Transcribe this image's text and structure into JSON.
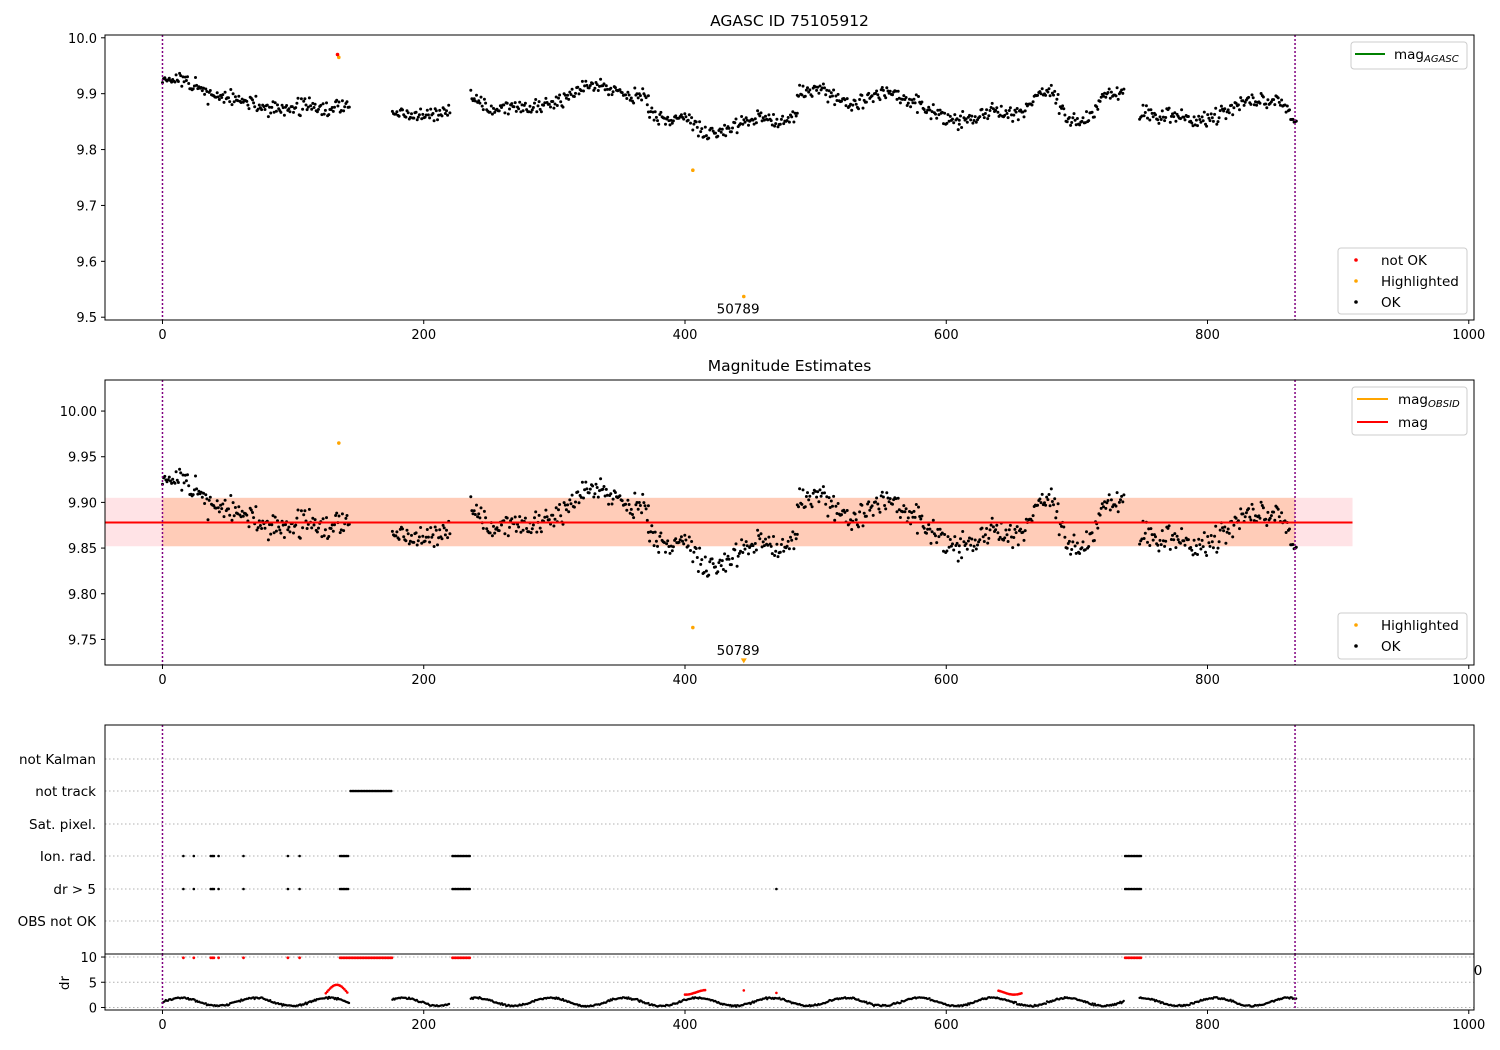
{
  "chart_data": [
    {
      "type": "scatter",
      "title": "AGASC ID 75105912",
      "xlim": [
        -44,
        1004
      ],
      "ylim": [
        9.495,
        10.005
      ],
      "xticks": [
        0,
        200,
        400,
        600,
        800,
        1000
      ],
      "yticks": [
        9.5,
        9.6,
        9.7,
        9.8,
        9.9,
        10.0
      ],
      "ytick_labels": [
        "9.5",
        "9.6",
        "9.7",
        "9.8",
        "9.9",
        "10.0"
      ],
      "vlines": [
        0,
        867
      ],
      "legend_lines": [
        {
          "label": "mag",
          "sub": "AGASC",
          "color": "#008000"
        }
      ],
      "legend_points": [
        {
          "label": "not OK",
          "color": "#ff0000"
        },
        {
          "label": "Highlighted",
          "color": "#ffa500"
        },
        {
          "label": "OK",
          "color": "#000000"
        }
      ],
      "annotation": {
        "text": "50789",
        "x": 433,
        "y": 9.51
      },
      "highlighted": [
        [
          135,
          9.965
        ],
        [
          406,
          9.763
        ],
        [
          445,
          9.537
        ]
      ],
      "not_ok": [
        [
          134,
          9.97
        ]
      ],
      "segments": [
        {
          "x0": 0,
          "x1": 143,
          "y": [
            9.93,
            9.92,
            9.9,
            9.89,
            9.88,
            9.87,
            9.88,
            9.87,
            9.88
          ]
        },
        {
          "x0": 176,
          "x1": 220,
          "y": [
            9.87,
            9.86,
            9.86,
            9.86,
            9.87
          ]
        },
        {
          "x0": 236,
          "x1": 372,
          "y": [
            9.9,
            9.87,
            9.88,
            9.87,
            9.88,
            9.9,
            9.92,
            9.91,
            9.9,
            9.89
          ]
        },
        {
          "x0": 372,
          "x1": 486,
          "y": [
            9.87,
            9.85,
            9.86,
            9.83,
            9.83,
            9.85,
            9.86,
            9.85,
            9.86
          ]
        },
        {
          "x0": 486,
          "x1": 610,
          "y": [
            9.9,
            9.91,
            9.89,
            9.88,
            9.9,
            9.9,
            9.88,
            9.86,
            9.85
          ]
        },
        {
          "x0": 610,
          "x1": 736,
          "y": [
            9.85,
            9.86,
            9.87,
            9.86,
            9.89,
            9.91,
            9.85,
            9.85,
            9.9,
            9.9
          ]
        },
        {
          "x0": 748,
          "x1": 868,
          "y": [
            9.87,
            9.86,
            9.86,
            9.85,
            9.86,
            9.88,
            9.89,
            9.89,
            9.85
          ]
        }
      ]
    },
    {
      "type": "scatter",
      "title": "Magnitude Estimates",
      "xlim": [
        -44,
        1004
      ],
      "ylim": [
        9.722,
        10.034
      ],
      "xticks": [
        0,
        200,
        400,
        600,
        800,
        1000
      ],
      "yticks": [
        9.75,
        9.8,
        9.85,
        9.9,
        9.95,
        10.0
      ],
      "ytick_labels": [
        "9.75",
        "9.80",
        "9.85",
        "9.90",
        "9.95",
        "10.00"
      ],
      "vlines": [
        0,
        867
      ],
      "mag_line": 9.878,
      "mag_band": [
        9.852,
        9.905
      ],
      "band_x": [
        -44,
        911
      ],
      "inner_band_x": [
        0,
        867
      ],
      "legend_lines": [
        {
          "label": "mag",
          "sub": "OBSID",
          "color": "#ffa500"
        },
        {
          "label": "mag",
          "sub": "",
          "color": "#ff0000"
        }
      ],
      "legend_points": [
        {
          "label": "Highlighted",
          "color": "#ffa500"
        },
        {
          "label": "OK",
          "color": "#000000"
        }
      ],
      "annotation": {
        "text": "50789",
        "x": 433,
        "y": 9.734
      },
      "highlighted": [
        [
          135,
          9.965
        ],
        [
          406,
          9.763
        ]
      ],
      "offscale_marker": [
        445,
        9.726
      ]
    },
    {
      "type": "scatter",
      "categories": [
        "not Kalman",
        "not track",
        "Sat. pixel.",
        "Ion. rad.",
        "dr > 5",
        "OBS not OK"
      ],
      "xlim": [
        -44,
        1004
      ],
      "vlines": [
        0,
        867
      ],
      "flags": {
        "not track": [
          [
            144,
            176
          ]
        ],
        "Ion. rad.": [
          [
            16,
            16
          ],
          [
            24,
            24
          ],
          [
            37,
            40
          ],
          [
            43,
            43
          ],
          [
            62,
            62
          ],
          [
            96,
            96
          ],
          [
            105,
            105
          ],
          [
            136,
            142
          ],
          [
            222,
            236
          ],
          [
            737,
            750
          ]
        ],
        "dr > 5": [
          [
            16,
            16
          ],
          [
            24,
            24
          ],
          [
            37,
            40
          ],
          [
            43,
            43
          ],
          [
            62,
            62
          ],
          [
            96,
            96
          ],
          [
            105,
            105
          ],
          [
            136,
            142
          ],
          [
            222,
            236
          ],
          [
            470,
            470
          ],
          [
            737,
            750
          ]
        ]
      }
    },
    {
      "type": "scatter",
      "ylabel": "dr",
      "xlim": [
        -44,
        1004
      ],
      "ylim": [
        -0.5,
        10.6
      ],
      "xticks": [
        0,
        200,
        400,
        600,
        800,
        1000
      ],
      "yticks": [
        0,
        5,
        10
      ],
      "ytick_labels": [
        "0",
        "5",
        "10"
      ],
      "corner_label": "0",
      "vlines": [
        0,
        867
      ],
      "red_high": [
        [
          16,
          16
        ],
        [
          24,
          24
        ],
        [
          37,
          40
        ],
        [
          43,
          43
        ],
        [
          62,
          62
        ],
        [
          96,
          96
        ],
        [
          105,
          105
        ],
        [
          136,
          176
        ],
        [
          222,
          236
        ],
        [
          737,
          750
        ]
      ],
      "red_mid": [
        [
          125,
          142
        ],
        [
          400,
          416
        ],
        [
          445,
          445
        ],
        [
          470,
          471
        ],
        [
          640,
          658
        ]
      ]
    }
  ]
}
